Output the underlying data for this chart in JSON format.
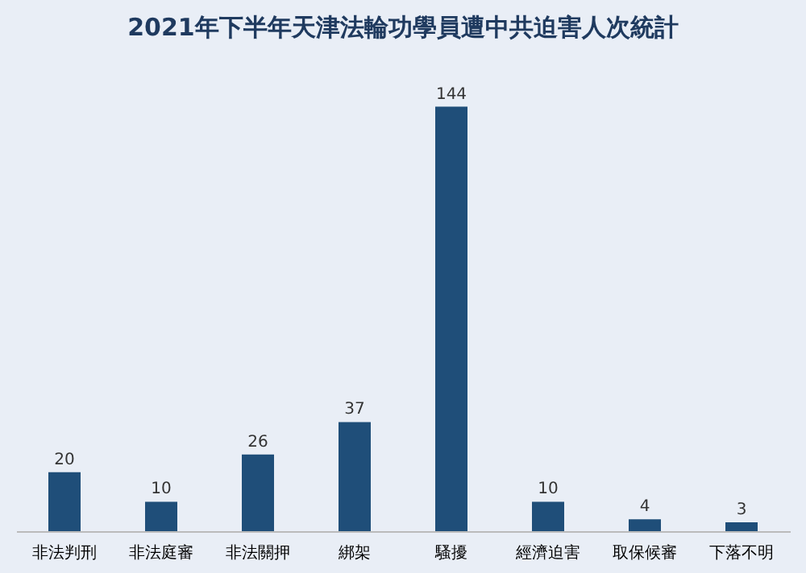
{
  "chart_data": {
    "type": "bar",
    "title": "2021年下半年天津法輪功學員遭中共迫害人次統計",
    "categories": [
      "非法判刑",
      "非法庭審",
      "非法關押",
      "綁架",
      "騷擾",
      "經濟迫害",
      "取保候審",
      "下落不明"
    ],
    "values": [
      20,
      10,
      26,
      37,
      144,
      10,
      4,
      3
    ],
    "color": "#1f4e79",
    "data_labels": true
  }
}
